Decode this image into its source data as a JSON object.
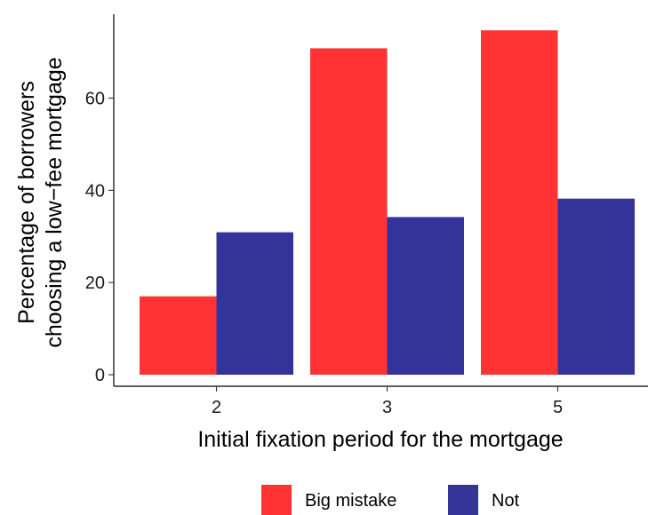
{
  "chart_data": {
    "type": "bar",
    "xlabel": "Initial fixation period for the mortgage",
    "ylabel": [
      "Percentage of borrowers",
      "choosing a low−fee mortgage"
    ],
    "categories": [
      "2",
      "3",
      "5"
    ],
    "series": [
      {
        "name": "Big mistake",
        "color": "#ff3333",
        "values": [
          17,
          70.8,
          74.7
        ]
      },
      {
        "name": "Not",
        "color": "#333399",
        "values": [
          30.9,
          34.2,
          38.2
        ]
      }
    ],
    "yticks": [
      0,
      20,
      40,
      60
    ],
    "ylim": [
      -2.5,
      78.2
    ],
    "grid": false,
    "legend_position": "bottom"
  }
}
